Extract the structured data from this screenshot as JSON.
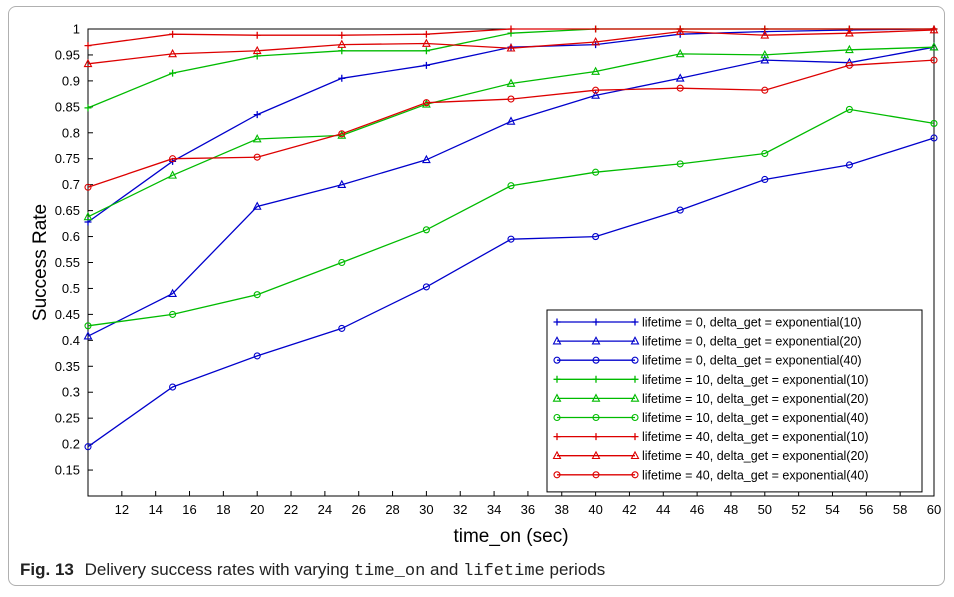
{
  "chart_data": {
    "type": "line",
    "xlabel": "time_on (sec)",
    "ylabel": "Success Rate",
    "xlim": [
      10,
      60
    ],
    "ylim": [
      0.1,
      1
    ],
    "xticks": [
      12,
      14,
      16,
      18,
      20,
      22,
      24,
      26,
      28,
      30,
      32,
      34,
      36,
      38,
      40,
      42,
      44,
      46,
      48,
      50,
      52,
      54,
      56,
      58,
      60
    ],
    "yticks": [
      0.15,
      0.2,
      0.25,
      0.3,
      0.35,
      0.4,
      0.45,
      0.5,
      0.55,
      0.6,
      0.65,
      0.7,
      0.75,
      0.8,
      0.85,
      0.9,
      0.95,
      1
    ],
    "ytick_labels": [
      "0.15",
      "0.2",
      "0.25",
      "0.3",
      "0.35",
      "0.4",
      "0.45",
      "0.5",
      "0.55",
      "0.6",
      "0.65",
      "0.7",
      "0.75",
      "0.8",
      "0.85",
      "0.9",
      "0.95",
      "1"
    ],
    "grid": false,
    "legend_position": "bottom-right",
    "x": [
      10,
      15,
      20,
      25,
      30,
      35,
      40,
      45,
      50,
      55,
      60
    ],
    "series": [
      {
        "name": "lifetime = 0, delta_get = exponential(10)",
        "color": "#0000cc",
        "marker": "plus",
        "values": [
          0.628,
          0.745,
          0.835,
          0.905,
          0.93,
          0.965,
          0.97,
          0.99,
          0.995,
          0.998,
          1.0
        ]
      },
      {
        "name": "lifetime = 0, delta_get = exponential(20)",
        "color": "#0000cc",
        "marker": "triangle",
        "values": [
          0.408,
          0.49,
          0.658,
          0.7,
          0.748,
          0.822,
          0.872,
          0.905,
          0.94,
          0.935,
          0.965
        ]
      },
      {
        "name": "lifetime = 0, delta_get = exponential(40)",
        "color": "#0000cc",
        "marker": "circle",
        "values": [
          0.195,
          0.31,
          0.37,
          0.423,
          0.503,
          0.595,
          0.6,
          0.651,
          0.71,
          0.738,
          0.79
        ]
      },
      {
        "name": "lifetime = 10, delta_get = exponential(10)",
        "color": "#00bb00",
        "marker": "plus",
        "values": [
          0.848,
          0.915,
          0.948,
          0.958,
          0.958,
          0.992,
          1.0,
          1.0,
          1.0,
          1.0,
          1.0
        ]
      },
      {
        "name": "lifetime = 10, delta_get = exponential(20)",
        "color": "#00bb00",
        "marker": "triangle",
        "values": [
          0.638,
          0.718,
          0.788,
          0.795,
          0.855,
          0.895,
          0.918,
          0.952,
          0.95,
          0.96,
          0.965
        ]
      },
      {
        "name": "lifetime = 10, delta_get = exponential(40)",
        "color": "#00bb00",
        "marker": "circle",
        "values": [
          0.428,
          0.45,
          0.488,
          0.55,
          0.613,
          0.698,
          0.724,
          0.74,
          0.76,
          0.845,
          0.818
        ]
      },
      {
        "name": "lifetime = 40, delta_get = exponential(10)",
        "color": "#dd0000",
        "marker": "plus",
        "values": [
          0.968,
          0.99,
          0.988,
          0.988,
          0.99,
          1.0,
          1.0,
          1.0,
          1.0,
          1.0,
          1.0
        ]
      },
      {
        "name": "lifetime = 40, delta_get = exponential(20)",
        "color": "#dd0000",
        "marker": "triangle",
        "values": [
          0.933,
          0.952,
          0.958,
          0.97,
          0.972,
          0.963,
          0.975,
          0.995,
          0.988,
          0.992,
          0.998
        ]
      },
      {
        "name": "lifetime = 40, delta_get = exponential(40)",
        "color": "#dd0000",
        "marker": "circle",
        "values": [
          0.695,
          0.75,
          0.753,
          0.798,
          0.858,
          0.865,
          0.882,
          0.886,
          0.882,
          0.93,
          0.94
        ]
      }
    ]
  },
  "caption": {
    "fig_label": "Fig. 13",
    "text_1": "Delivery success rates with varying",
    "code_1": "time_on",
    "text_2": "and",
    "code_2": "lifetime",
    "text_3": "periods"
  }
}
